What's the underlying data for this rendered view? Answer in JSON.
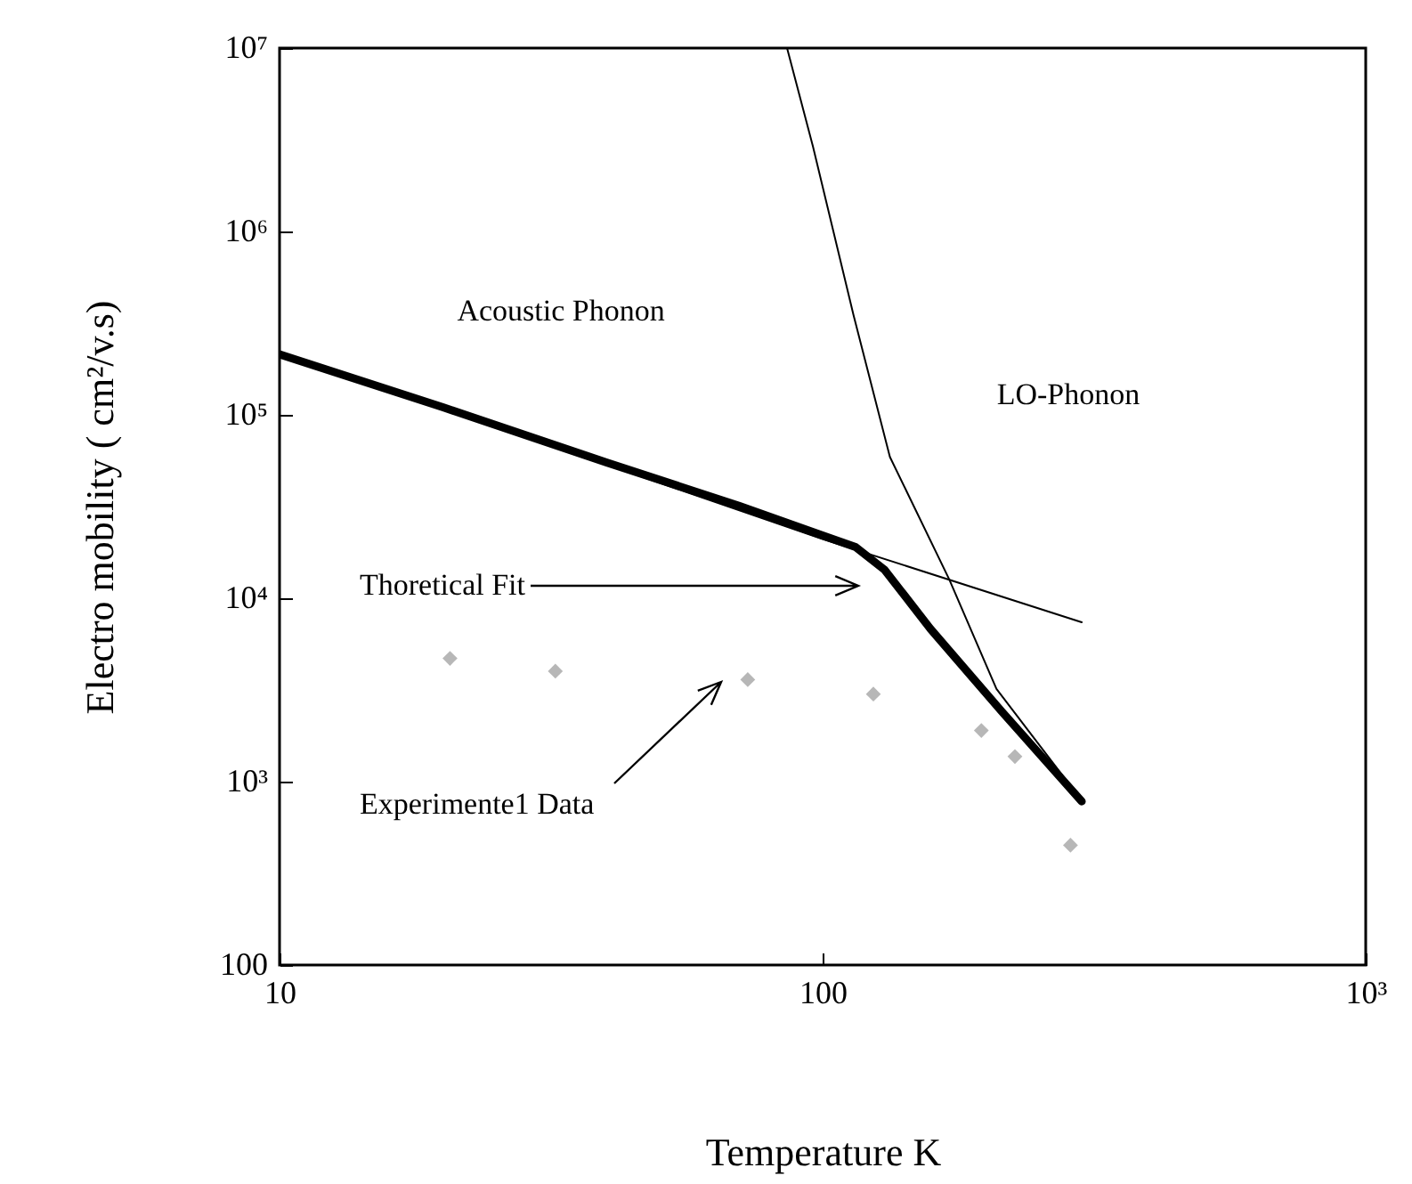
{
  "chart_data": {
    "type": "line",
    "xlabel": "Temperature K",
    "ylabel": "Electro mobility ( cm²/v.s)",
    "log": "xy",
    "grid": false,
    "marker": "none",
    "xlim": [
      10,
      1000
    ],
    "xticks": [
      10,
      100,
      {
        "value": 1000,
        "label": "10³"
      }
    ],
    "ylim": [
      100,
      10000000
    ],
    "yticks": [
      100,
      {
        "value": 1000,
        "label": "10³"
      },
      {
        "value": 10000,
        "label": "10⁴"
      },
      {
        "value": 100000,
        "label": "10⁵"
      },
      {
        "value": 1000000,
        "label": "10⁶"
      },
      {
        "value": 10000000,
        "label": "10⁷"
      }
    ],
    "series": [
      {
        "color": "#000000",
        "x": [
          10,
          30,
          100,
          300
        ],
        "values": [
          214000,
          72000,
          21000,
          7400
        ]
      },
      {
        "color": "#000000",
        "x": [
          86,
          96,
          114,
          133,
          171,
          209,
          289
        ],
        "values": [
          10000000,
          2900000,
          350000,
          59000,
          12700,
          3200,
          910
        ]
      },
      {
        "color": "#000000",
        "x": [
          10,
          20,
          40,
          70,
          100,
          115,
          130,
          158,
          214,
          300
        ],
        "values": [
          214000,
          110000,
          55000,
          32000,
          22000,
          19000,
          14300,
          6800,
          2400,
          780
        ]
      },
      {
        "type": "scatter",
        "marker": "diamond",
        "color": "#999999",
        "x": [
          20.6,
          32.2,
          72.8,
          124,
          196,
          226,
          286
        ],
        "values": [
          4700,
          4000,
          3600,
          3000,
          1900,
          1370,
          450
        ]
      }
    ],
    "annotations": [
      "Acoustic Phonon",
      "LO-Phonon",
      "Thoretical Fit",
      "Experimente1 Data"
    ]
  }
}
